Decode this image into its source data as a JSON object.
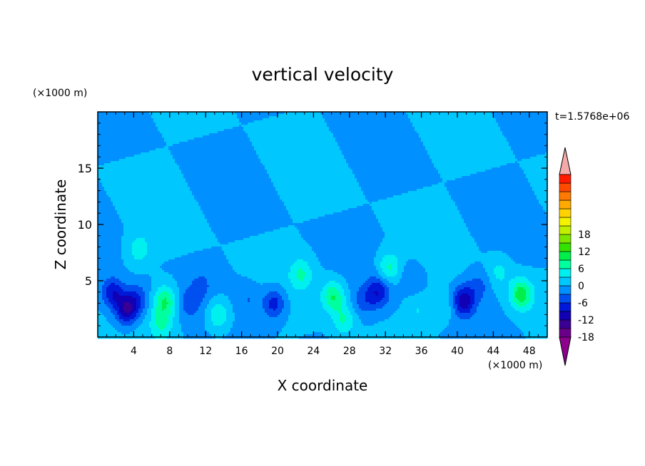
{
  "chart_data": {
    "type": "heatmap",
    "title": "vertical velocity",
    "xlabel": "X coordinate",
    "ylabel": "Z coordinate",
    "x_unit": "(×1000 m)",
    "y_unit": "(×1000 m)",
    "time_label": "t=1.5768e+06",
    "xlim": [
      0,
      50
    ],
    "ylim": [
      0,
      20
    ],
    "x_ticks": [
      4,
      8,
      12,
      16,
      20,
      24,
      28,
      32,
      36,
      40,
      44,
      48
    ],
    "y_ticks": [
      5,
      10,
      15
    ],
    "grid": false,
    "colorbar": {
      "min": -21,
      "max": 21,
      "step": 3,
      "tick_labels": [
        18,
        12,
        6,
        0,
        -6,
        -12,
        -18
      ],
      "colors": [
        "#8d008d",
        "#6a008a",
        "#3a0094",
        "#1200b4",
        "#0018d8",
        "#0050f0",
        "#0090ff",
        "#00c8ff",
        "#00f0f0",
        "#00ff9f",
        "#00ef4a",
        "#33e200",
        "#7de600",
        "#c0ef00",
        "#f3f300",
        "#ffd200",
        "#ffaa00",
        "#ff7a00",
        "#ff4a00",
        "#ff1a00",
        "#f4aaa8"
      ]
    },
    "features": [
      {
        "x": 1.7,
        "z": 3.9,
        "w": -9
      },
      {
        "x": 3.2,
        "z": 2.4,
        "w": -12
      },
      {
        "x": 4.4,
        "z": 3.4,
        "w": -6
      },
      {
        "x": 7.5,
        "z": 3.2,
        "w": 9
      },
      {
        "x": 7.1,
        "z": 1.2,
        "w": 6
      },
      {
        "x": 13.4,
        "z": 2.0,
        "w": 7
      },
      {
        "x": 10.2,
        "z": 3.0,
        "w": -4
      },
      {
        "x": 16.8,
        "z": 3.4,
        "w": -3
      },
      {
        "x": 19.6,
        "z": 3.0,
        "w": -8
      },
      {
        "x": 22.6,
        "z": 5.6,
        "w": 6
      },
      {
        "x": 26.2,
        "z": 3.6,
        "w": 9
      },
      {
        "x": 27.4,
        "z": 1.5,
        "w": 6
      },
      {
        "x": 29.6,
        "z": 3.2,
        "w": -4
      },
      {
        "x": 31.2,
        "z": 4.0,
        "w": -8
      },
      {
        "x": 32.4,
        "z": 6.2,
        "w": 7
      },
      {
        "x": 35.6,
        "z": 2.4,
        "w": 3
      },
      {
        "x": 40.7,
        "z": 3.2,
        "w": -11
      },
      {
        "x": 42.4,
        "z": 4.6,
        "w": -4
      },
      {
        "x": 47.1,
        "z": 3.8,
        "w": 11
      },
      {
        "x": 44.6,
        "z": 5.8,
        "w": 4
      },
      {
        "x": 4.6,
        "z": 7.8,
        "w": 5
      },
      {
        "x": 11.5,
        "z": 4.6,
        "w": -3
      },
      {
        "x": 35.0,
        "z": 5.2,
        "w": -3
      },
      {
        "x": 38.6,
        "z": 2.8,
        "w": 3
      }
    ]
  }
}
